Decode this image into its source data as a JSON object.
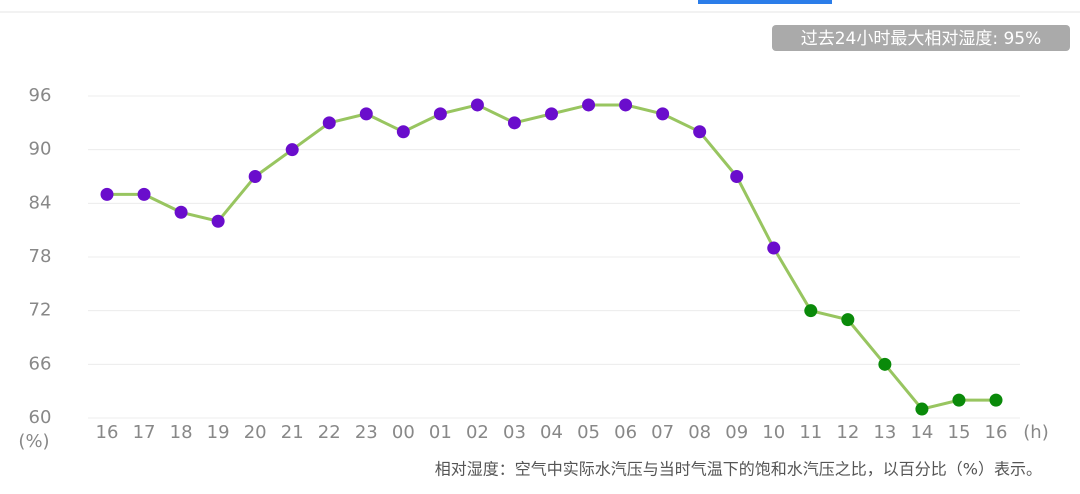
{
  "chart_data": {
    "type": "line",
    "badge": "过去24小时最大相对湿度: 95%",
    "note": "相对湿度：空气中实际水汽压与当时气温下的饱和水汽压之比，以百分比（%）表示。",
    "y_label": "(%)",
    "x_label": "(h)",
    "categories": [
      "16",
      "17",
      "18",
      "19",
      "20",
      "21",
      "22",
      "23",
      "00",
      "01",
      "02",
      "03",
      "04",
      "05",
      "06",
      "07",
      "08",
      "09",
      "10",
      "11",
      "12",
      "13",
      "14",
      "15",
      "16"
    ],
    "series": [
      {
        "color": "#98c560",
        "values": [
          85,
          85,
          83,
          82,
          87,
          90,
          93,
          94,
          92,
          94,
          95,
          93,
          94,
          95,
          95,
          94,
          92,
          87,
          79,
          72,
          71,
          66,
          61,
          62,
          62
        ],
        "marker_colors": [
          "#6a0dcc",
          "#6a0dcc",
          "#6a0dcc",
          "#6a0dcc",
          "#6a0dcc",
          "#6a0dcc",
          "#6a0dcc",
          "#6a0dcc",
          "#6a0dcc",
          "#6a0dcc",
          "#6a0dcc",
          "#6a0dcc",
          "#6a0dcc",
          "#6a0dcc",
          "#6a0dcc",
          "#6a0dcc",
          "#6a0dcc",
          "#6a0dcc",
          "#6a0dcc",
          "#0a8a0a",
          "#0a8a0a",
          "#0a8a0a",
          "#0a8a0a",
          "#0a8a0a",
          "#0a8a0a"
        ]
      }
    ],
    "ylim": [
      60,
      96
    ],
    "yticks": [
      60,
      66,
      72,
      78,
      84,
      90,
      96
    ],
    "grid": true
  }
}
